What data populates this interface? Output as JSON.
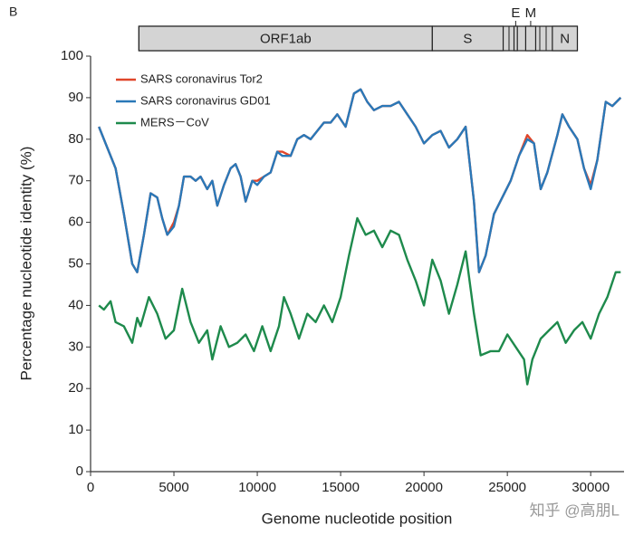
{
  "panel_label": "B",
  "watermark": "知乎 @高朋L",
  "genome_map": {
    "genes": [
      {
        "name": "ORF1ab",
        "start": 2900,
        "end": 20500
      },
      {
        "name": "S",
        "start": 20500,
        "end": 24750
      },
      {
        "name": "E",
        "start": 25400,
        "end": 25600
      },
      {
        "name": "M",
        "start": 26100,
        "end": 26700
      },
      {
        "name": "N",
        "start": 27700,
        "end": 29200
      }
    ]
  },
  "chart_data": {
    "type": "line",
    "xlabel": "Genome nucleotide position",
    "ylabel": "Percentage nucleotide identity (%)",
    "xlim": [
      0,
      32000
    ],
    "ylim": [
      0,
      100
    ],
    "xticks": [
      0,
      5000,
      10000,
      15000,
      20000,
      25000,
      30000
    ],
    "yticks": [
      0,
      10,
      20,
      30,
      40,
      50,
      60,
      70,
      80,
      90,
      100
    ],
    "legend": "upper left",
    "series": [
      {
        "name": "SARS coronavirus Tor2",
        "color": "#e0462a",
        "x": [
          500,
          1000,
          1500,
          2000,
          2500,
          2800,
          3200,
          3600,
          4000,
          4300,
          4600,
          5000,
          5300,
          5600,
          6000,
          6300,
          6600,
          7000,
          7300,
          7600,
          8000,
          8400,
          8700,
          9000,
          9300,
          9700,
          10000,
          10400,
          10800,
          11200,
          11500,
          12000,
          12400,
          12800,
          13200,
          13600,
          14000,
          14400,
          14800,
          15300,
          15800,
          16200,
          16600,
          17000,
          17500,
          18000,
          18500,
          19000,
          19500,
          20000,
          20500,
          21000,
          21500,
          22000,
          22500,
          23000,
          23300,
          23700,
          24200,
          24700,
          25200,
          25700,
          26200,
          26600,
          27000,
          27400,
          28000,
          28300,
          28700,
          29200,
          29600,
          30000,
          30400,
          30900,
          31300,
          31800
        ],
        "values": [
          83,
          78,
          73,
          62,
          50,
          48,
          57,
          67,
          66,
          61,
          57,
          60,
          64,
          71,
          71,
          70,
          71,
          68,
          70,
          64,
          69,
          73,
          74,
          71,
          65,
          70,
          70,
          71,
          72,
          77,
          77,
          76,
          80,
          81,
          80,
          82,
          84,
          84,
          86,
          83,
          91,
          92,
          89,
          87,
          88,
          88,
          89,
          86,
          83,
          79,
          81,
          82,
          78,
          80,
          83,
          65,
          48,
          52,
          62,
          66,
          70,
          76,
          81,
          79,
          68,
          72,
          81,
          86,
          83,
          80,
          73,
          69,
          75,
          89,
          88,
          90
        ]
      },
      {
        "name": "SARS coronavirus GD01",
        "color": "#2a78b8",
        "x": [
          500,
          1000,
          1500,
          2000,
          2500,
          2800,
          3200,
          3600,
          4000,
          4300,
          4600,
          5000,
          5300,
          5600,
          6000,
          6300,
          6600,
          7000,
          7300,
          7600,
          8000,
          8400,
          8700,
          9000,
          9300,
          9700,
          10000,
          10400,
          10800,
          11200,
          11500,
          12000,
          12400,
          12800,
          13200,
          13600,
          14000,
          14400,
          14800,
          15300,
          15800,
          16200,
          16600,
          17000,
          17500,
          18000,
          18500,
          19000,
          19500,
          20000,
          20500,
          21000,
          21500,
          22000,
          22500,
          23000,
          23300,
          23700,
          24200,
          24700,
          25200,
          25700,
          26200,
          26600,
          27000,
          27400,
          28000,
          28300,
          28700,
          29200,
          29600,
          30000,
          30400,
          30900,
          31300,
          31800
        ],
        "values": [
          83,
          78,
          73,
          62,
          50,
          48,
          57,
          67,
          66,
          61,
          57,
          59,
          64,
          71,
          71,
          70,
          71,
          68,
          70,
          64,
          69,
          73,
          74,
          71,
          65,
          70,
          69,
          71,
          72,
          77,
          76,
          76,
          80,
          81,
          80,
          82,
          84,
          84,
          86,
          83,
          91,
          92,
          89,
          87,
          88,
          88,
          89,
          86,
          83,
          79,
          81,
          82,
          78,
          80,
          83,
          65,
          48,
          52,
          62,
          66,
          70,
          76,
          80,
          79,
          68,
          72,
          81,
          86,
          83,
          80,
          73,
          68,
          75,
          89,
          88,
          90
        ]
      },
      {
        "name": "MERS－CoV",
        "color": "#1e8a4c",
        "x": [
          500,
          800,
          1200,
          1500,
          2000,
          2500,
          2800,
          3000,
          3500,
          4000,
          4500,
          5000,
          5500,
          6000,
          6500,
          7000,
          7300,
          7800,
          8300,
          8800,
          9300,
          9800,
          10300,
          10800,
          11300,
          11600,
          12000,
          12500,
          13000,
          13500,
          14000,
          14500,
          15000,
          15500,
          16000,
          16500,
          17000,
          17500,
          18000,
          18500,
          19000,
          19500,
          20000,
          20500,
          21000,
          21500,
          22000,
          22500,
          23000,
          23400,
          24000,
          24500,
          25000,
          25500,
          26000,
          26200,
          26500,
          27000,
          27500,
          28000,
          28500,
          29000,
          29500,
          30000,
          30500,
          31000,
          31500,
          31800
        ],
        "values": [
          40,
          39,
          41,
          36,
          35,
          31,
          37,
          35,
          42,
          38,
          32,
          34,
          44,
          36,
          31,
          34,
          27,
          35,
          30,
          31,
          33,
          29,
          35,
          29,
          35,
          42,
          38,
          32,
          38,
          36,
          40,
          36,
          42,
          52,
          61,
          57,
          58,
          54,
          58,
          57,
          51,
          46,
          40,
          51,
          46,
          38,
          45,
          53,
          38,
          28,
          29,
          29,
          33,
          30,
          27,
          21,
          27,
          32,
          34,
          36,
          31,
          34,
          36,
          32,
          38,
          42,
          48,
          48
        ]
      }
    ]
  }
}
